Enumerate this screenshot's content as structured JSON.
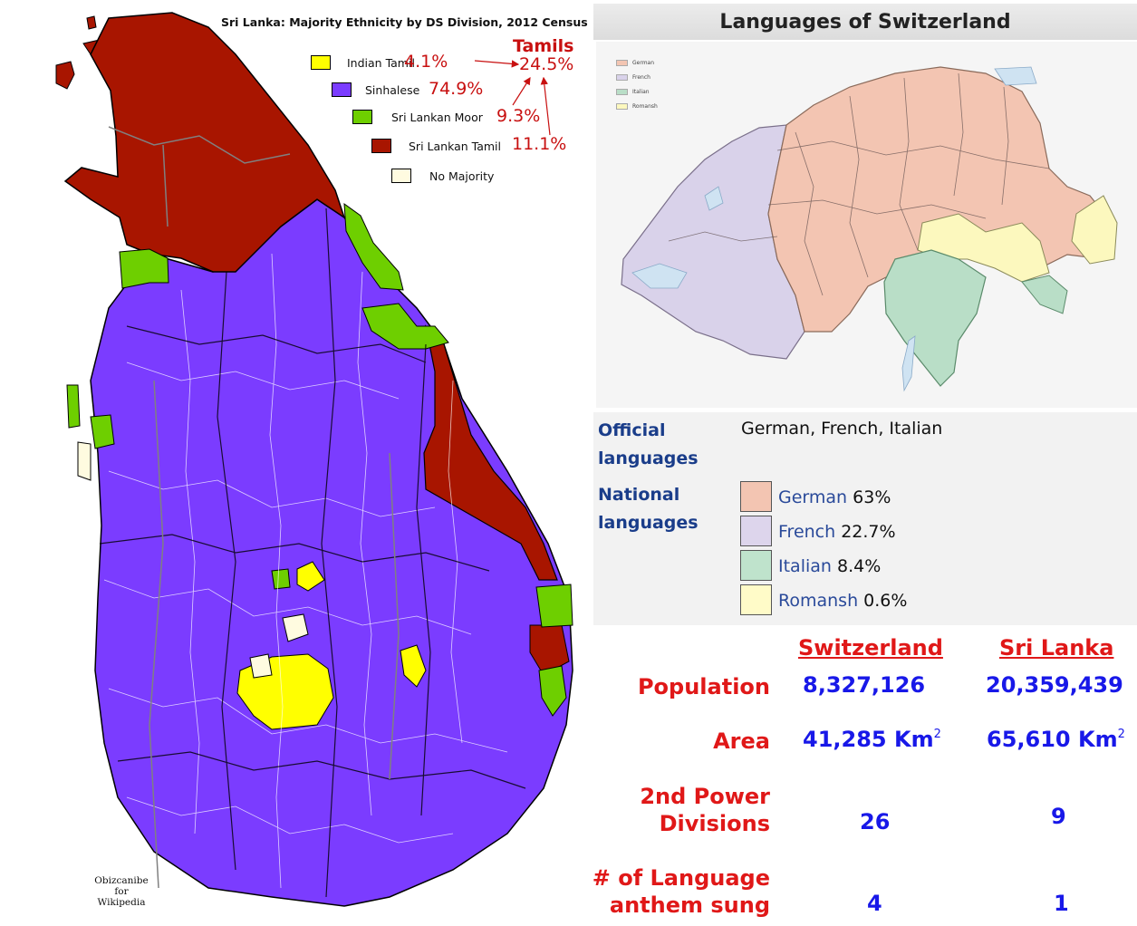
{
  "sri_lanka_map": {
    "title": "Sri Lanka: Majority Ethnicity by DS Division, 2012 Census",
    "legend": [
      {
        "label": "Indian Tamil",
        "percent": "4.1%",
        "color": "#ffff00"
      },
      {
        "label": "Sinhalese",
        "percent": "74.9%",
        "color": "#7b3cff"
      },
      {
        "label": "Sri Lankan Moor",
        "percent": "9.3%",
        "color": "#6ecf00"
      },
      {
        "label": "Sri Lankan Tamil",
        "percent": "11.1%",
        "color": "#a81500"
      },
      {
        "label": "No Majority",
        "percent": "",
        "color": "#fffbe0"
      }
    ],
    "tamils_heading": "Tamils",
    "tamils_total": "24.5%",
    "credit_lines": [
      "Obizcanibe",
      "for",
      "Wikipedia"
    ]
  },
  "switzerland_map": {
    "title": "Languages of Switzerland",
    "mini_legend": [
      "German",
      "French",
      "Italian",
      "Romansh"
    ],
    "colors": {
      "German": "#f3c5b2",
      "French": "#d9d2ea",
      "Italian": "#b9dec7",
      "Romansh": "#fcf8be"
    }
  },
  "switzerland_info": {
    "official_label_line1": "Official",
    "official_label_line2": "languages",
    "official_value": "German, French, Italian",
    "national_label_line1": "National",
    "national_label_line2": "languages",
    "national_languages": [
      {
        "name": "German",
        "percent": "63%",
        "color": "#f3c5b2"
      },
      {
        "name": "French",
        "percent": "22.7%",
        "color": "#ddd5ec"
      },
      {
        "name": "Italian",
        "percent": "8.4%",
        "color": "#bfe3cc"
      },
      {
        "name": "Romansh",
        "percent": "0.6%",
        "color": "#fffbc8"
      }
    ]
  },
  "comparison": {
    "headers": [
      "Switzerland",
      "Sri Lanka"
    ],
    "rows": [
      {
        "label_line1": "Population",
        "label_line2": "",
        "switzerland": "8,327,126",
        "sri_lanka": "20,359,439"
      },
      {
        "label_line1": "Area",
        "label_line2": "",
        "switzerland": "41,285 Km",
        "sri_lanka": "65,610 Km",
        "unit_sup": "2"
      },
      {
        "label_line1": "2nd Power",
        "label_line2": "Divisions",
        "switzerland": "26",
        "sri_lanka": "9"
      },
      {
        "label_line1": "# of Language",
        "label_line2": "anthem sung",
        "switzerland": "4",
        "sri_lanka": "1"
      }
    ]
  }
}
